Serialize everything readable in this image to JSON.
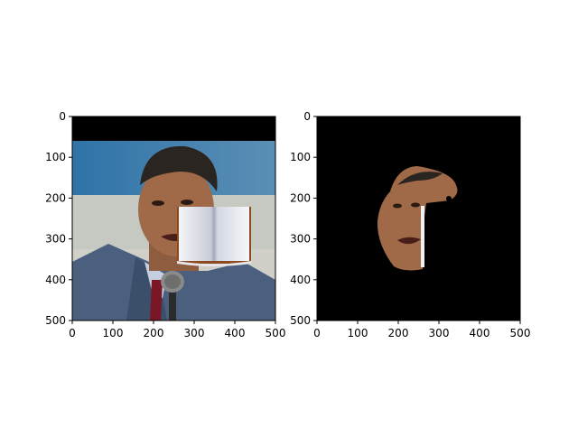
{
  "chart_data": [
    {
      "type": "image",
      "panel": "left",
      "content": "photo of a man in a suit speaking into a microphone, with a small open-book overlay near his cheek",
      "xlim": [
        0,
        500
      ],
      "ylim": [
        500,
        0
      ],
      "xticks": [
        "0",
        "100",
        "200",
        "300",
        "400",
        "500"
      ],
      "yticks": [
        "0",
        "100",
        "200",
        "300",
        "400",
        "500"
      ],
      "title": "",
      "xlabel": "",
      "ylabel": ""
    },
    {
      "type": "image",
      "panel": "right",
      "content": "segmentation mask result: face region of the man shown on a black background",
      "xlim": [
        0,
        500
      ],
      "ylim": [
        500,
        0
      ],
      "xticks": [
        "0",
        "100",
        "200",
        "300",
        "400",
        "500"
      ],
      "yticks": [
        "0",
        "100",
        "200",
        "300",
        "400",
        "500"
      ],
      "title": "",
      "xlabel": "",
      "ylabel": ""
    }
  ],
  "colors": {
    "background": "#000000",
    "sky": "#3d7db0",
    "wall": "#c9c9c0",
    "suit": "#4a607e",
    "skin": "#a06a48",
    "hair": "#2a2521",
    "tie": "#7a1626",
    "book_cover": "#8b4a1f"
  },
  "icons": {
    "book": "open-book-icon",
    "microphone": "microphone-icon"
  }
}
